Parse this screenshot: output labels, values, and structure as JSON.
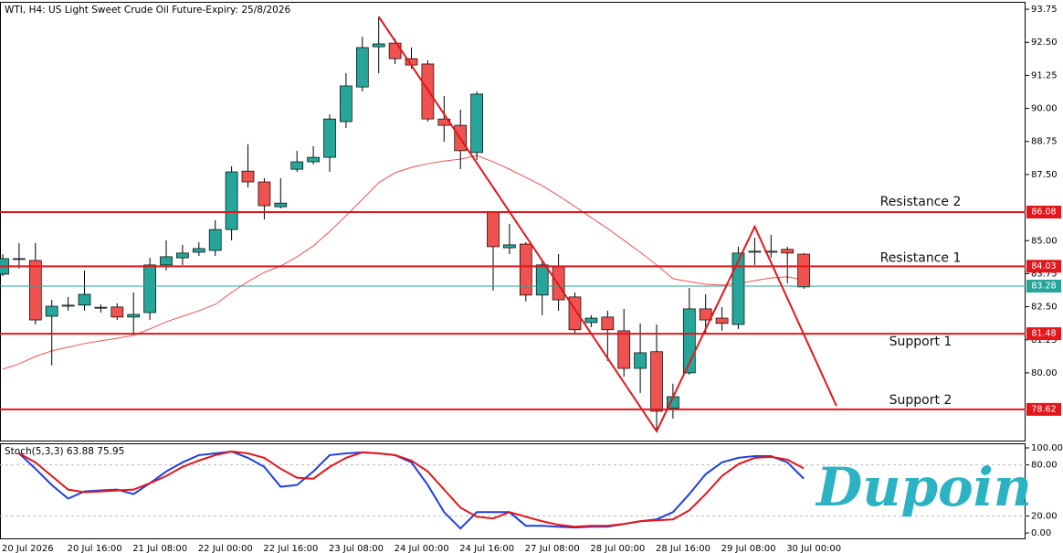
{
  "chart_data": [
    {
      "type": "candlestick",
      "title": "WTI, H4:  US Light Sweet Crude Oil Future-Expiry: 25/8/2026",
      "categories": [
        "20 Jul 2026",
        null,
        null,
        null,
        "20 Jul 16:00",
        null,
        null,
        null,
        "21 Jul 08:00",
        null,
        null,
        null,
        "22 Jul 00:00",
        null,
        null,
        null,
        "22 Jul 16:00",
        null,
        null,
        null,
        "23 Jul 08:00",
        null,
        null,
        null,
        "24 Jul 00:00",
        null,
        null,
        null,
        "24 Jul 16:00",
        null,
        null,
        null,
        "27 Jul 08:00",
        null,
        null,
        null,
        "28 Jul 00:00",
        null,
        null,
        null,
        "28 Jul 16:00",
        null,
        null,
        null,
        "29 Jul 08:00",
        null,
        null,
        null,
        "30 Jul 00:00",
        null
      ],
      "open": [
        83.73,
        84.3,
        84.25,
        82.14,
        82.52,
        82.56,
        82.48,
        82.49,
        82.11,
        82.28,
        84.08,
        84.35,
        84.56,
        84.63,
        85.42,
        87.63,
        87.22,
        86.28,
        87.7,
        87.98,
        88.15,
        89.5,
        90.81,
        92.33,
        92.47,
        91.88,
        91.68,
        89.6,
        89.36,
        88.33,
        86.08,
        84.73,
        84.87,
        82.94,
        84.01,
        82.87,
        81.9,
        82.11,
        81.59,
        80.17,
        80.8,
        78.66,
        80.0,
        82.42,
        82.07,
        81.83,
        84.56,
        84.56,
        84.67,
        84.49
      ],
      "high": [
        84.49,
        84.9,
        84.91,
        82.76,
        82.87,
        83.87,
        82.59,
        82.63,
        83.04,
        84.35,
        85.01,
        84.84,
        84.94,
        85.77,
        87.81,
        88.64,
        87.36,
        87.36,
        88.4,
        88.57,
        89.78,
        91.33,
        92.71,
        93.47,
        92.64,
        92.3,
        91.82,
        90.47,
        89.95,
        90.64,
        86.1,
        85.63,
        84.94,
        84.25,
        84.49,
        83.04,
        82.18,
        82.35,
        82.42,
        81.87,
        81.83,
        79.59,
        83.21,
        82.97,
        82.49,
        84.77,
        85.11,
        85.22,
        84.77,
        84.53
      ],
      "low": [
        83.66,
        83.95,
        81.83,
        80.28,
        82.35,
        82.35,
        82.28,
        82.0,
        81.49,
        82.0,
        83.87,
        84.08,
        84.42,
        84.42,
        85.01,
        87.01,
        85.8,
        86.22,
        87.6,
        87.88,
        87.6,
        89.26,
        90.64,
        91.33,
        91.68,
        91.5,
        89.5,
        88.74,
        87.7,
        88.05,
        83.11,
        84.49,
        82.7,
        82.18,
        82.35,
        81.49,
        81.73,
        80.45,
        79.86,
        79.24,
        77.79,
        78.27,
        79.93,
        81.49,
        81.59,
        81.66,
        84.08,
        84.35,
        83.39,
        83.18
      ],
      "close": [
        84.32,
        84.32,
        82.0,
        82.52,
        82.56,
        82.97,
        82.45,
        82.11,
        82.21,
        84.08,
        84.39,
        84.53,
        84.7,
        85.42,
        87.6,
        87.22,
        86.32,
        86.42,
        87.98,
        88.15,
        89.6,
        90.85,
        92.3,
        92.44,
        91.88,
        91.64,
        89.6,
        89.36,
        88.4,
        90.54,
        84.77,
        84.84,
        82.94,
        84.08,
        82.76,
        81.63,
        82.07,
        81.63,
        80.17,
        80.76,
        78.55,
        79.1,
        82.42,
        82.0,
        81.87,
        84.53,
        84.6,
        84.6,
        84.53,
        83.25
      ],
      "up_color": "#26a69a",
      "down_color": "#ef5350",
      "ma": {
        "color": "#ef5350",
        "values": [
          80.14,
          80.34,
          80.62,
          80.83,
          80.97,
          81.11,
          81.21,
          81.31,
          81.42,
          81.66,
          81.93,
          82.14,
          82.35,
          82.59,
          83.04,
          83.45,
          83.8,
          84.04,
          84.39,
          84.8,
          85.35,
          85.94,
          86.56,
          87.19,
          87.57,
          87.77,
          87.91,
          88.01,
          88.08,
          88.22,
          87.98,
          87.7,
          87.39,
          87.08,
          86.7,
          86.29,
          85.87,
          85.46,
          85.01,
          84.56,
          84.08,
          83.56,
          83.45,
          83.35,
          83.32,
          83.38,
          83.49,
          83.59,
          83.63,
          83.52
        ]
      },
      "zigzag": {
        "color": "#e3161b",
        "x": [
          23,
          40,
          46,
          51
        ],
        "values": [
          93.47,
          77.79,
          85.53,
          78.75
        ]
      },
      "levels": [
        {
          "label": "Resistance 2",
          "value": 86.08,
          "color": "#e3161b"
        },
        {
          "label": "Resistance 1",
          "value": 84.03,
          "color": "#e3161b"
        },
        {
          "value": 83.28,
          "color": "#26a69a"
        },
        {
          "label": "Support 1",
          "value": 81.48,
          "color": "#e3161b"
        },
        {
          "label": "Support 2",
          "value": 78.62,
          "color": "#e3161b"
        }
      ],
      "ylim": [
        77.44,
        93.96
      ],
      "yticks": [
        93.75,
        {
          "value": 92.5,
          "label": "92.50"
        },
        91.25,
        {
          "value": 90,
          "label": "90.00"
        },
        88.75,
        {
          "value": 87.5,
          "label": "87.50"
        },
        {
          "value": 85,
          "label": "85.00"
        },
        83.75,
        {
          "value": 82.5,
          "label": "82.50"
        },
        81.25,
        {
          "value": 80,
          "label": "80.00"
        }
      ]
    },
    {
      "type": "line",
      "title": "Stoch(5,3,3) 63.88 75.95",
      "series": [
        {
          "color": "#1f3fe0",
          "values": [
            null,
            93.6,
            75.5,
            56.4,
            40.4,
            48.9,
            50,
            51,
            45.7,
            58.5,
            72.3,
            83,
            91.5,
            93.6,
            95.7,
            88.3,
            77.7,
            54.3,
            56.4,
            72.3,
            91.5,
            93.6,
            94.7,
            93.6,
            91.5,
            83,
            56.4,
            24.5,
            5.3,
            24.5,
            24.5,
            24.5,
            8.5,
            8.5,
            7.4,
            6.4,
            7.4,
            7.4,
            10.6,
            13.8,
            16,
            24.5,
            45.7,
            69.1,
            83,
            88.3,
            90.4,
            90.4,
            83,
            63.88
          ]
        },
        {
          "color": "#e3161b",
          "values": [
            null,
            93.6,
            83,
            67,
            51,
            47.9,
            48.9,
            50,
            51,
            58.5,
            67,
            77.7,
            85.1,
            91.5,
            95.7,
            93.6,
            88.3,
            75.5,
            64.9,
            63.8,
            77.7,
            88.3,
            94.7,
            93.6,
            91.5,
            85.1,
            72.3,
            51,
            29.8,
            19.1,
            17,
            24.5,
            19.1,
            13.8,
            9.6,
            7.4,
            8.5,
            8.5,
            10.6,
            13.8,
            14.9,
            16,
            26.6,
            45.7,
            67,
            80.9,
            88.3,
            89.4,
            86.2,
            75.95
          ]
        }
      ],
      "level_lines": [
        80,
        20
      ],
      "ylim": [
        -7.4,
        104.3
      ],
      "yticks": [
        {
          "value": 100,
          "label": "100.00"
        },
        {
          "value": 80,
          "label": "80.00"
        },
        {
          "value": 20,
          "label": "20.00"
        },
        {
          "value": 0,
          "label": "0.00"
        }
      ]
    }
  ],
  "logo": "Dupoin"
}
